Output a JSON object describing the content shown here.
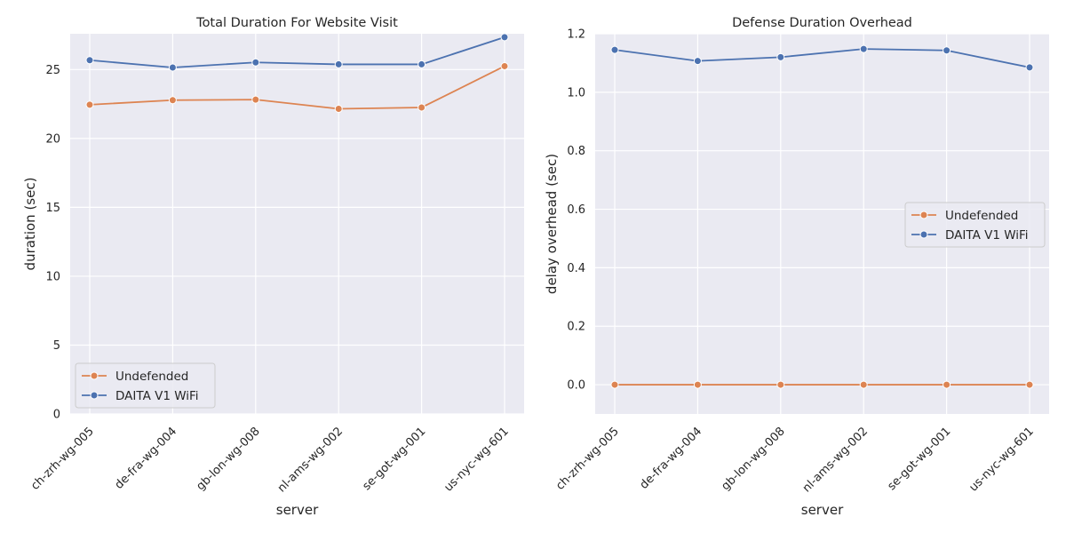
{
  "chart_data": [
    {
      "type": "line",
      "title": "Total Duration For Website Visit",
      "xlabel": "server",
      "ylabel": "duration (sec)",
      "categories": [
        "ch-zrh-wg-005",
        "de-fra-wg-004",
        "gb-lon-wg-008",
        "nl-ams-wg-002",
        "se-got-wg-001",
        "us-nyc-wg-601"
      ],
      "ylim": [
        0,
        27.6
      ],
      "yticks": [
        "0",
        "5",
        "10",
        "15",
        "20",
        "25"
      ],
      "ytick_values": [
        0,
        5,
        10,
        15,
        20,
        25
      ],
      "legend_position": "lower-left",
      "series": [
        {
          "name": "Undefended",
          "color": "#dd8452",
          "values": [
            22.45,
            22.78,
            22.82,
            22.15,
            22.25,
            25.25
          ]
        },
        {
          "name": "DAITA V1 WiFi",
          "color": "#4c72b0",
          "values": [
            25.68,
            25.15,
            25.52,
            25.38,
            25.38,
            27.35
          ]
        }
      ]
    },
    {
      "type": "line",
      "title": "Defense Duration Overhead",
      "xlabel": "server",
      "ylabel": "delay overhead (sec)",
      "categories": [
        "ch-zrh-wg-005",
        "de-fra-wg-004",
        "gb-lon-wg-008",
        "nl-ams-wg-002",
        "se-got-wg-001",
        "us-nyc-wg-601"
      ],
      "ylim": [
        -0.1,
        1.2
      ],
      "yticks": [
        "0.0",
        "0.2",
        "0.4",
        "0.6",
        "0.8",
        "1.0",
        "1.2"
      ],
      "ytick_values": [
        0,
        0.2,
        0.4,
        0.6,
        0.8,
        1.0,
        1.2
      ],
      "legend_position": "center-right",
      "series": [
        {
          "name": "Undefended",
          "color": "#dd8452",
          "values": [
            0,
            0,
            0,
            0,
            0,
            0
          ]
        },
        {
          "name": "DAITA V1 WiFi",
          "color": "#4c72b0",
          "values": [
            1.145,
            1.107,
            1.12,
            1.148,
            1.143,
            1.085
          ]
        }
      ]
    }
  ]
}
